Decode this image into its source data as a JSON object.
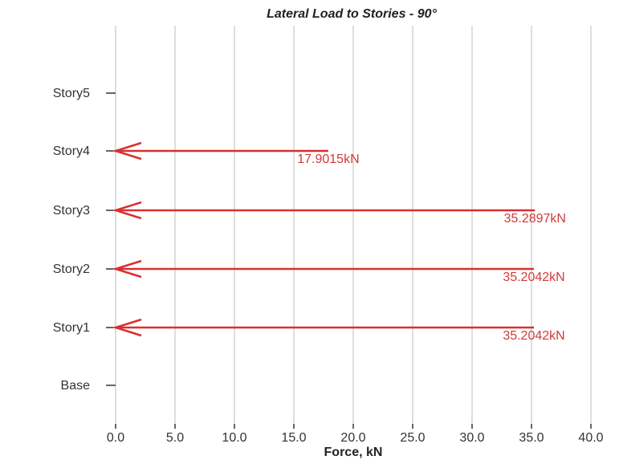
{
  "chart_data": {
    "type": "bar",
    "orientation": "horizontal",
    "title": "Lateral Load to Stories - 90°",
    "xlabel": "Force, kN",
    "ylabel": "",
    "xlim": [
      0,
      40
    ],
    "x_ticks": [
      "0.0",
      "5.0",
      "10.0",
      "15.0",
      "20.0",
      "25.0",
      "30.0",
      "35.0",
      "40.0"
    ],
    "categories": [
      "Story5",
      "Story4",
      "Story3",
      "Story2",
      "Story1",
      "Base"
    ],
    "values": [
      null,
      17.9015,
      35.2897,
      35.2042,
      35.2042,
      null
    ],
    "value_labels": [
      "",
      "17.9015kN",
      "35.2897kN",
      "35.2042kN",
      "35.2042kN",
      ""
    ],
    "arrow_direction": "left",
    "grid": true,
    "colors": {
      "arrow": "#d93030",
      "grid": "#d4d4d4",
      "axis": "#333333"
    }
  }
}
